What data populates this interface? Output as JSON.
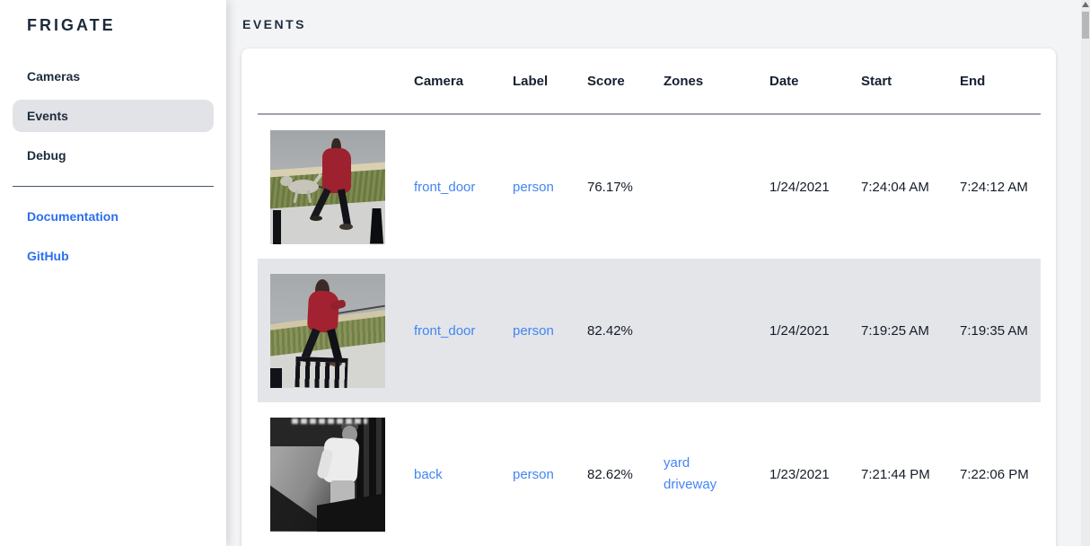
{
  "sidebar": {
    "logo": "FRIGATE",
    "items": [
      {
        "label": "Cameras",
        "active": false
      },
      {
        "label": "Events",
        "active": true
      },
      {
        "label": "Debug",
        "active": false
      }
    ],
    "links": [
      {
        "label": "Documentation"
      },
      {
        "label": "GitHub"
      }
    ]
  },
  "page": {
    "title": "EVENTS"
  },
  "events_table": {
    "columns": [
      "Camera",
      "Label",
      "Score",
      "Zones",
      "Date",
      "Start",
      "End"
    ],
    "rows": [
      {
        "camera": "front_door",
        "label": "person",
        "score": "76.17%",
        "zones": [],
        "date": "1/24/2021",
        "start": "7:24:04 AM",
        "end": "7:24:12 AM",
        "thumb_desc": "Person in red coat walking a gray dog along a sidewalk",
        "highlighted": false
      },
      {
        "camera": "front_door",
        "label": "person",
        "score": "82.42%",
        "zones": [],
        "date": "1/24/2021",
        "start": "7:19:25 AM",
        "end": "7:19:35 AM",
        "thumb_desc": "Person in red hooded jacket walking a dog past a metal fence",
        "highlighted": true
      },
      {
        "camera": "back",
        "label": "person",
        "score": "82.62%",
        "zones": [
          "yard",
          "driveway"
        ],
        "date": "1/23/2021",
        "start": "7:21:44 PM",
        "end": "7:22:06 PM",
        "thumb_desc": "Night infrared view of a person in a white long-sleeve shirt",
        "highlighted": false
      }
    ]
  },
  "colors": {
    "table_link_blue": "#4285f4",
    "sidebar_link_blue": "#2b6ff0",
    "dark_navy_text": "#1d2b3f",
    "active_item_bg": "#e2e3e6",
    "highlighted_row_bg": "#e3e5e9",
    "main_background": "#f3f4f6"
  }
}
